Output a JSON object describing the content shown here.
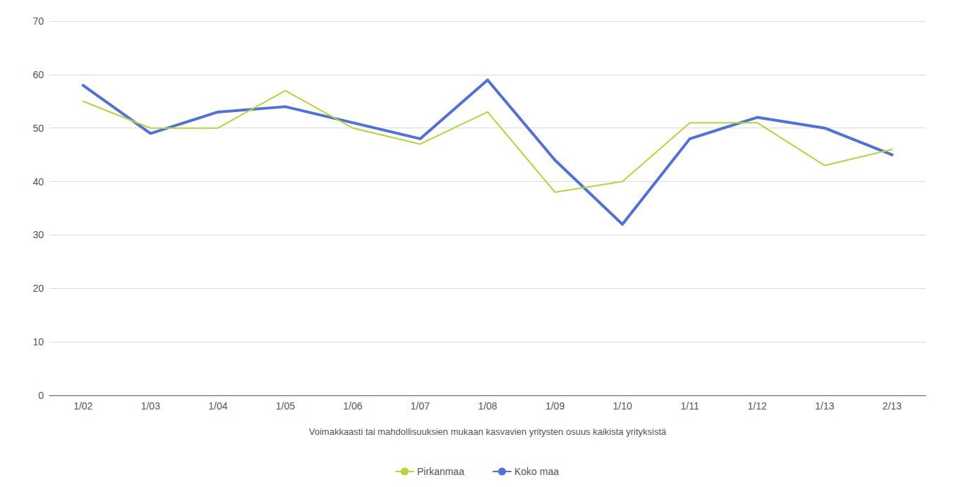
{
  "chart_data": {
    "type": "line",
    "xlabel": "Voimakkaasti tai mahdollisuuksien mukaan kasvavien yritysten osuus kaikista yrityksistä",
    "categories": [
      "1/02",
      "1/03",
      "1/04",
      "1/05",
      "1/06",
      "1/07",
      "1/08",
      "1/09",
      "1/10",
      "1/11",
      "1/12",
      "1/13",
      "2/13"
    ],
    "series": [
      {
        "name": "Koko maa",
        "values": [
          58,
          49,
          53,
          54,
          51,
          48,
          59,
          44,
          32,
          48,
          52,
          50,
          45
        ]
      },
      {
        "name": "Pirkanmaa",
        "values": [
          55,
          50,
          50,
          57,
          50,
          47,
          53,
          38,
          40,
          51,
          51,
          43,
          46
        ]
      }
    ],
    "ylim": [
      0,
      70
    ],
    "yticks": [
      0,
      10,
      20,
      30,
      40,
      50,
      60,
      70
    ],
    "grid": true,
    "legend": "bottom"
  }
}
